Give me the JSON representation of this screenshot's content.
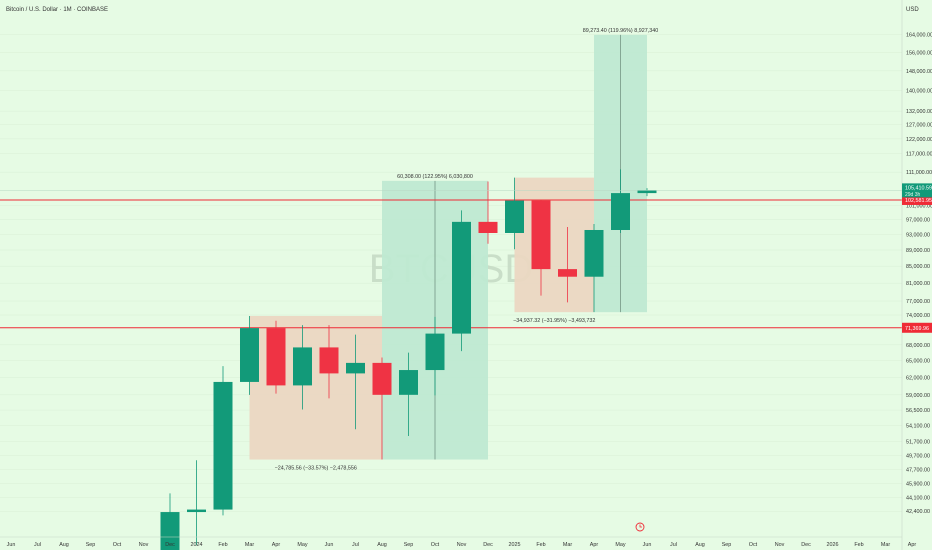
{
  "header": {
    "title": "Bitcoin / U.S. Dollar · 1M · COINBASE"
  },
  "axis": {
    "currency": "USD"
  },
  "watermark": "BTCUSD",
  "colors": {
    "bg": "#e6fbe4",
    "up": "#129a79",
    "down": "#ef3344",
    "gain_box": "#bfe9d2",
    "loss_box": "#ebd7c2",
    "hline": "#ef2b36",
    "text": "#333333",
    "grid": "#d9efd6"
  },
  "chart_data": {
    "type": "candlestick",
    "y_scale": "log",
    "ylim": [
      40200,
      170000
    ],
    "y_ticks": [
      164000,
      156000,
      148000,
      140000,
      132000,
      127000,
      122000,
      117000,
      111000,
      101000,
      97000,
      93000,
      89000,
      85000,
      81000,
      77000,
      74000,
      68000,
      65000,
      62000,
      59000,
      56500,
      54100,
      51700,
      49700,
      47700,
      45900,
      44100,
      42400
    ],
    "x_ticks": [
      "Jun",
      "Jul",
      "Aug",
      "Sep",
      "Oct",
      "Nov",
      "Dec",
      "2024",
      "Feb",
      "Mar",
      "Apr",
      "May",
      "Jun",
      "Jul",
      "Aug",
      "Sep",
      "Oct",
      "Nov",
      "Dec",
      "2025",
      "Feb",
      "Mar",
      "Apr",
      "May",
      "Jun",
      "Jul",
      "Aug",
      "Sep",
      "Oct",
      "Nov",
      "Dec",
      "2026",
      "Feb",
      "Mar",
      "Apr"
    ],
    "candles": [
      {
        "month": "Dec 2023",
        "open": 37700,
        "high": 44600,
        "low": 37600,
        "close": 42300
      },
      {
        "month": "Jan 2024",
        "open": 42300,
        "high": 49000,
        "low": 38500,
        "close": 42600
      },
      {
        "month": "Feb 2024",
        "open": 42600,
        "high": 64000,
        "low": 41900,
        "close": 61200
      },
      {
        "month": "Mar 2024",
        "open": 61200,
        "high": 73800,
        "low": 59000,
        "close": 71300
      },
      {
        "month": "Apr 2024",
        "open": 71300,
        "high": 72800,
        "low": 59200,
        "close": 60600
      },
      {
        "month": "May 2024",
        "open": 60600,
        "high": 71900,
        "low": 56600,
        "close": 67500
      },
      {
        "month": "Jun 2024",
        "open": 67500,
        "high": 71900,
        "low": 58400,
        "close": 62700
      },
      {
        "month": "Jul 2024",
        "open": 62700,
        "high": 70000,
        "low": 53500,
        "close": 64600
      },
      {
        "month": "Aug 2024",
        "open": 64600,
        "high": 65600,
        "low": 49100,
        "close": 59000
      },
      {
        "month": "Sep 2024",
        "open": 59000,
        "high": 66500,
        "low": 52500,
        "close": 63300
      },
      {
        "month": "Oct 2024",
        "open": 63300,
        "high": 73600,
        "low": 58900,
        "close": 70200
      },
      {
        "month": "Nov 2024",
        "open": 70200,
        "high": 99600,
        "low": 66800,
        "close": 96400
      },
      {
        "month": "Dec 2024",
        "open": 96400,
        "high": 108100,
        "low": 90600,
        "close": 93400
      },
      {
        "month": "Jan 2025",
        "open": 93400,
        "high": 109300,
        "low": 89200,
        "close": 102400
      },
      {
        "month": "Feb 2025",
        "open": 102400,
        "high": 102500,
        "low": 78200,
        "close": 84300
      },
      {
        "month": "Mar 2025",
        "open": 84300,
        "high": 95000,
        "low": 76700,
        "close": 82500
      },
      {
        "month": "Apr 2025",
        "open": 82500,
        "high": 95800,
        "low": 74600,
        "close": 94200
      },
      {
        "month": "May 2025",
        "open": 94200,
        "high": 111900,
        "low": 93400,
        "close": 104600
      },
      {
        "month": "Jun 2025",
        "open": 104600,
        "high": 106100,
        "low": 103700,
        "close": 105400
      }
    ],
    "price_range_boxes": [
      {
        "from": "Mar 2024",
        "to": "Aug 2024",
        "top": 73800,
        "bottom": 49100,
        "kind": "loss",
        "label": "−24,785.56 (−33.57%) −2,478,556"
      },
      {
        "from": "Aug 2024",
        "to": "Dec 2024",
        "top": 108300,
        "bottom": 49100,
        "kind": "gain",
        "label": "60,308.00 (122.95%) 6,030,800"
      },
      {
        "from": "Jan 2025",
        "to": "Apr 2025",
        "top": 109300,
        "bottom": 74600,
        "kind": "loss",
        "label": "−34,937.32 (−31.95%) −3,493,732"
      },
      {
        "from": "Apr 2025",
        "to": "Jun 2025",
        "top": 163900,
        "bottom": 74600,
        "kind": "gain",
        "label": "89,273.40 (119.96%) 8,927,340"
      }
    ],
    "horizontal_lines": [
      {
        "price": 102581.95,
        "label": "102,581.95"
      },
      {
        "price": 71369.96,
        "label": "71,369.96"
      }
    ],
    "last_price": {
      "price": 105410.59,
      "label": "105,410.59",
      "countdown": "29d 3h"
    }
  }
}
